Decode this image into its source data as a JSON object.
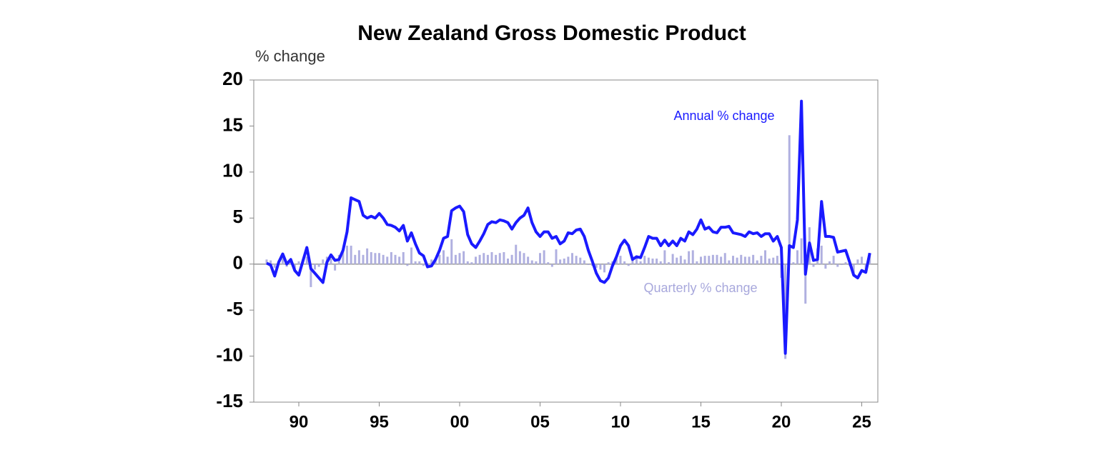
{
  "chart_data": {
    "type": "combo",
    "title": "New Zealand Gross Domestic Product",
    "y_label": "% change",
    "x": [
      1988,
      1988.25,
      1988.5,
      1988.75,
      1989,
      1989.25,
      1989.5,
      1989.75,
      1990,
      1990.25,
      1990.5,
      1990.75,
      1991,
      1991.25,
      1991.5,
      1991.75,
      1992,
      1992.25,
      1992.5,
      1992.75,
      1993,
      1993.25,
      1993.5,
      1993.75,
      1994,
      1994.25,
      1994.5,
      1994.75,
      1995,
      1995.25,
      1995.5,
      1995.75,
      1996,
      1996.25,
      1996.5,
      1996.75,
      1997,
      1997.25,
      1997.5,
      1997.75,
      1998,
      1998.25,
      1998.5,
      1998.75,
      1999,
      1999.25,
      1999.5,
      1999.75,
      2000,
      2000.25,
      2000.5,
      2000.75,
      2001,
      2001.25,
      2001.5,
      2001.75,
      2002,
      2002.25,
      2002.5,
      2002.75,
      2003,
      2003.25,
      2003.5,
      2003.75,
      2004,
      2004.25,
      2004.5,
      2004.75,
      2005,
      2005.25,
      2005.5,
      2005.75,
      2006,
      2006.25,
      2006.5,
      2006.75,
      2007,
      2007.25,
      2007.5,
      2007.75,
      2008,
      2008.25,
      2008.5,
      2008.75,
      2009,
      2009.25,
      2009.5,
      2009.75,
      2010,
      2010.25,
      2010.5,
      2010.75,
      2011,
      2011.25,
      2011.5,
      2011.75,
      2012,
      2012.25,
      2012.5,
      2012.75,
      2013,
      2013.25,
      2013.5,
      2013.75,
      2014,
      2014.25,
      2014.5,
      2014.75,
      2015,
      2015.25,
      2015.5,
      2015.75,
      2016,
      2016.25,
      2016.5,
      2016.75,
      2017,
      2017.25,
      2017.5,
      2017.75,
      2018,
      2018.25,
      2018.5,
      2018.75,
      2019,
      2019.25,
      2019.5,
      2019.75,
      2020,
      2020.25,
      2020.5,
      2020.75,
      2021,
      2021.25,
      2021.5,
      2021.75,
      2022,
      2022.25,
      2022.5,
      2022.75,
      2023,
      2023.25,
      2023.5,
      2023.75,
      2024,
      2024.25,
      2024.5,
      2024.75,
      2025,
      2025.25,
      2025.5
    ],
    "series": [
      {
        "name": "Annual % change",
        "type": "line",
        "color": "#1a1aff",
        "values": [
          0.1,
          -0.1,
          -1.3,
          0.2,
          1.1,
          0.0,
          0.5,
          -0.7,
          -1.2,
          0.3,
          1.8,
          -0.5,
          -1.0,
          -1.5,
          -2.0,
          0.2,
          1.0,
          0.4,
          0.5,
          1.5,
          3.5,
          7.2,
          7.0,
          6.8,
          5.3,
          5.0,
          5.2,
          5.0,
          5.5,
          5.0,
          4.3,
          4.2,
          4.0,
          3.6,
          4.2,
          2.5,
          3.4,
          2.2,
          1.2,
          0.9,
          -0.3,
          -0.2,
          0.5,
          1.5,
          2.8,
          3.0,
          5.8,
          6.1,
          6.3,
          5.7,
          3.2,
          2.2,
          1.8,
          2.5,
          3.3,
          4.3,
          4.6,
          4.5,
          4.8,
          4.7,
          4.5,
          3.8,
          4.5,
          5.0,
          5.3,
          6.1,
          4.5,
          3.5,
          3.0,
          3.5,
          3.5,
          2.8,
          3.0,
          2.2,
          2.5,
          3.4,
          3.3,
          3.7,
          3.8,
          3.0,
          1.5,
          0.3,
          -1.0,
          -1.8,
          -2.0,
          -1.5,
          -0.2,
          0.8,
          2.0,
          2.6,
          2.0,
          0.5,
          0.8,
          0.7,
          1.8,
          3.0,
          2.8,
          2.8,
          2.0,
          2.6,
          2.0,
          2.5,
          2.0,
          2.8,
          2.5,
          3.5,
          3.2,
          3.8,
          4.8,
          3.8,
          4.0,
          3.5,
          3.4,
          4.0,
          4.0,
          4.1,
          3.4,
          3.3,
          3.2,
          3.0,
          3.5,
          3.3,
          3.4,
          3.0,
          3.3,
          3.3,
          2.5,
          3.0,
          1.8,
          -9.7,
          2.0,
          1.8,
          4.8,
          17.7,
          -1.1,
          2.3,
          0.4,
          0.5,
          6.8,
          3.0,
          3.0,
          2.9,
          1.3,
          1.4,
          1.5,
          0.2,
          -1.2,
          -1.5,
          -0.7,
          -0.9,
          1.2
        ]
      },
      {
        "name": "Quarterly % change",
        "type": "bar",
        "color": "#b0b0e0",
        "values": [
          0.5,
          0.4,
          -0.4,
          0.4,
          1.0,
          -0.3,
          0.5,
          -0.8,
          0.3,
          0.5,
          0.8,
          -2.5,
          -0.6,
          -0.3,
          0.5,
          0.8,
          0.6,
          -0.7,
          1.0,
          1.5,
          2.0,
          2.0,
          1.0,
          1.5,
          1.0,
          1.7,
          1.3,
          1.2,
          1.2,
          1.0,
          0.8,
          1.3,
          1.0,
          0.8,
          1.3,
          -0.2,
          1.8,
          0.3,
          0.3,
          -0.2,
          -0.3,
          0.5,
          0.6,
          1.0,
          1.5,
          0.8,
          2.7,
          1.0,
          1.2,
          1.4,
          0.3,
          0.2,
          0.8,
          1.0,
          1.2,
          1.0,
          1.3,
          1.0,
          1.2,
          1.3,
          0.6,
          1.0,
          2.1,
          1.4,
          1.2,
          0.8,
          0.4,
          0.3,
          1.2,
          1.5,
          0.2,
          -0.3,
          1.6,
          0.5,
          0.6,
          0.8,
          1.2,
          0.9,
          0.7,
          0.4,
          -0.1,
          -0.2,
          -0.4,
          -0.6,
          -0.9,
          0.2,
          0.3,
          0.8,
          0.9,
          0.3,
          -0.2,
          0.5,
          0.6,
          0.3,
          0.9,
          0.7,
          0.6,
          0.6,
          0.3,
          1.5,
          0.2,
          1.1,
          0.7,
          0.9,
          0.5,
          1.4,
          1.5,
          0.3,
          0.8,
          0.9,
          0.9,
          1.0,
          1.0,
          0.8,
          1.2,
          0.4,
          0.9,
          0.7,
          1.0,
          0.8,
          0.8,
          1.0,
          0.4,
          0.9,
          1.5,
          0.6,
          0.7,
          0.9,
          -1.5,
          -10.3,
          14.0,
          0.2,
          1.5,
          2.8,
          -4.3,
          4.0,
          -0.3,
          1.7,
          2.0,
          -0.5,
          0.3,
          0.9,
          -0.3,
          -0.1,
          0.2,
          -0.2,
          -1.0,
          0.5,
          0.8,
          -0.9,
          1.2
        ]
      }
    ],
    "xlim": [
      1987.2,
      2026
    ],
    "xticks": [
      {
        "value": 1990,
        "label": "90"
      },
      {
        "value": 1995,
        "label": "95"
      },
      {
        "value": 2000,
        "label": "00"
      },
      {
        "value": 2005,
        "label": "05"
      },
      {
        "value": 2010,
        "label": "10"
      },
      {
        "value": 2015,
        "label": "15"
      },
      {
        "value": 2020,
        "label": "20"
      },
      {
        "value": 2025,
        "label": "25"
      }
    ],
    "ylim": [
      -15,
      20
    ],
    "yticks": [
      -15,
      -10,
      -5,
      0,
      5,
      10,
      15,
      20
    ]
  }
}
